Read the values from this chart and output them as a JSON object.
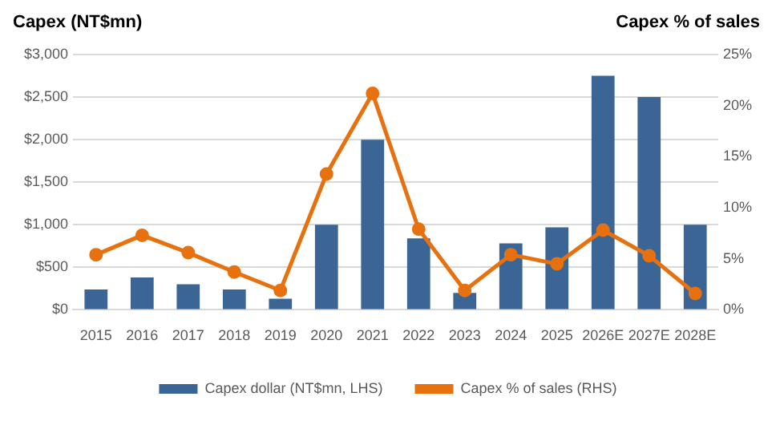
{
  "chart_data": {
    "type": "bar",
    "ylabel": "Capex (NT$mn)",
    "y2label": "Capex % of sales",
    "categories": [
      "2015",
      "2016",
      "2017",
      "2018",
      "2019",
      "2020",
      "2021",
      "2022",
      "2023",
      "2024",
      "2025",
      "2026E",
      "2027E",
      "2028E"
    ],
    "series": [
      {
        "name": "Capex dollar (NT$mn, LHS)",
        "color": "#3a6595",
        "values": [
          240,
          380,
          300,
          240,
          130,
          1000,
          2000,
          840,
          200,
          780,
          970,
          2750,
          2500,
          1000
        ]
      },
      {
        "name": "Capex % of sales (RHS)",
        "type": "line",
        "axis": "y2",
        "color": "#e8710f",
        "values": [
          5.4,
          7.3,
          5.6,
          3.7,
          1.9,
          13.3,
          21.2,
          7.9,
          1.9,
          5.4,
          4.5,
          7.8,
          5.3,
          1.6
        ]
      }
    ],
    "ylim": [
      0,
      3000
    ],
    "yticks": [
      {
        "value": 0,
        "label": "$0"
      },
      {
        "value": 500,
        "label": "$500"
      },
      {
        "value": 1000,
        "label": "$1,000"
      },
      {
        "value": 1500,
        "label": "$1,500"
      },
      {
        "value": 2000,
        "label": "$2,000"
      },
      {
        "value": 2500,
        "label": "$2,500"
      },
      {
        "value": 3000,
        "label": "$3,000"
      }
    ],
    "y2lim": [
      0,
      25
    ],
    "y2ticks": [
      {
        "value": 0,
        "label": "0%"
      },
      {
        "value": 5,
        "label": "5%"
      },
      {
        "value": 10,
        "label": "10%"
      },
      {
        "value": 15,
        "label": "15%"
      },
      {
        "value": 20,
        "label": "20%"
      },
      {
        "value": 25,
        "label": "25%"
      }
    ],
    "grid": "y",
    "legend": "bottom",
    "marker": "circle",
    "line_style": "solid"
  }
}
